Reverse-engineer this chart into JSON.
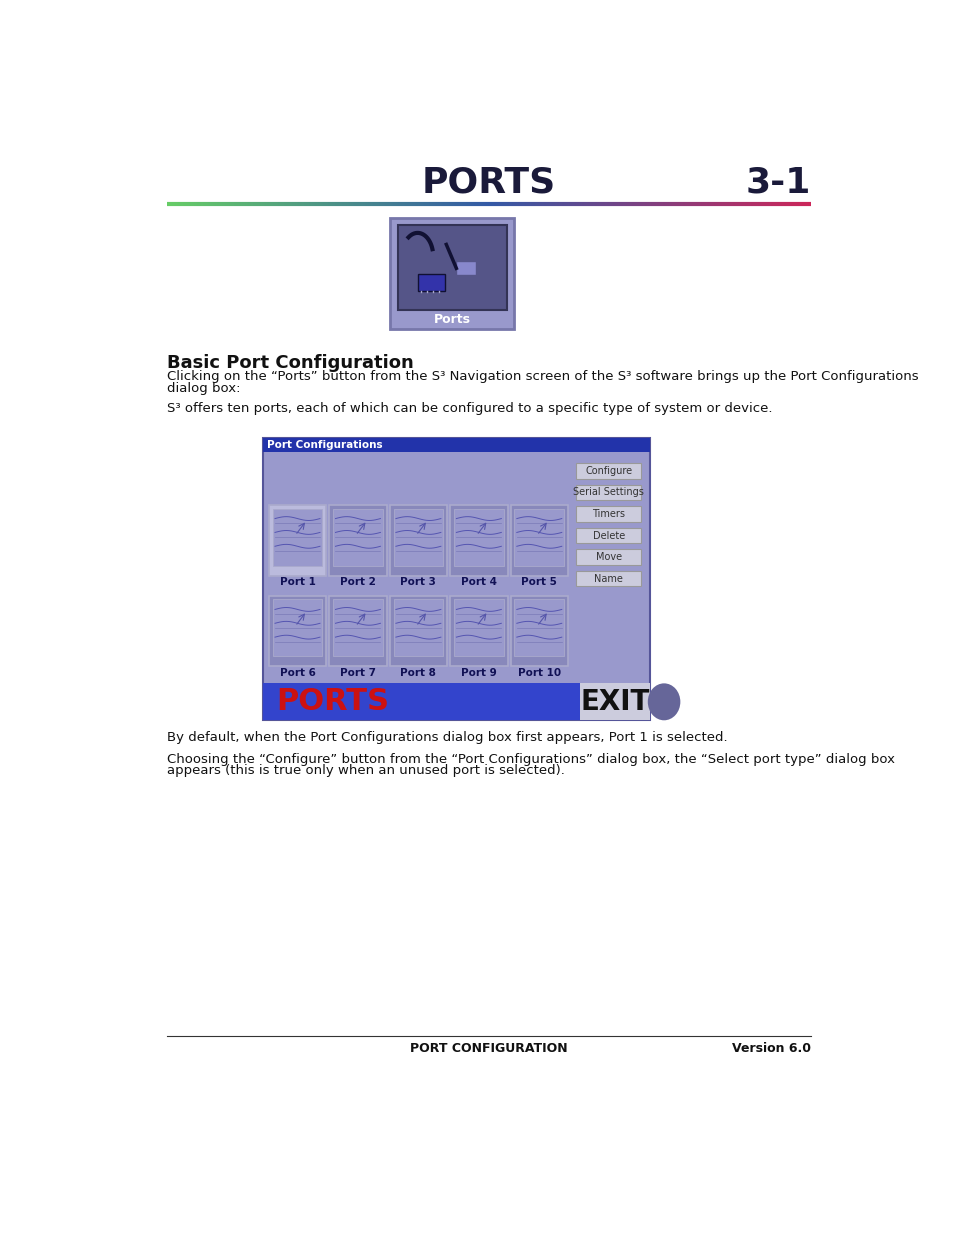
{
  "page_title": "PORTS",
  "page_number": "3-1",
  "section_title": "Basic Port Configuration",
  "body_text_1a": "Clicking on the “Ports” button from the S³ Navigation screen of the S³ software brings up the Port Configurations",
  "body_text_1b": "dialog box:",
  "body_text_2": "S³ offers ten ports, each of which can be configured to a specific type of system or device.",
  "body_text_3": "By default, when the Port Configurations dialog box first appears, Port 1 is selected.",
  "body_text_4a": "Choosing the “Configure” button from the “Port Configurations” dialog box, the “Select port type” dialog box",
  "body_text_4b": "appears (this is true only when an unused port is selected).",
  "footer_center": "PORT CONFIGURATION",
  "footer_right": "Version 6.0",
  "bg_color": "#ffffff",
  "title_color": "#1a1a3a",
  "body_color": "#111111",
  "dialog_bg": "#9999cc",
  "dialog_title_bg": "#2233aa",
  "dialog_bottom_bar_bg": "#3344cc",
  "dialog_exit_bg": "#555588",
  "dialog_exit_tab_bg": "#666699",
  "port_card_bg_selected": "#bbbbdd",
  "port_card_bg_normal": "#8888bb",
  "port_card_inner_bg": "#9999cc",
  "port_card_border": "#aaaacc",
  "port_label_color": "#111155",
  "button_bg": "#ccccdd",
  "button_border": "#999999",
  "icon_outer_bg": "#9999cc",
  "icon_inner_bg": "#8888bb",
  "ports_text_color": "#cc1111",
  "exit_text_color": "#ffffff",
  "btn_labels": [
    "Configure",
    "Serial Settings",
    "Timers",
    "Delete",
    "Move",
    "Name"
  ],
  "port_names": [
    "Port 1",
    "Port 2",
    "Port 3",
    "Port 4",
    "Port 5",
    "Port 6",
    "Port 7",
    "Port 8",
    "Port 9",
    "Port 10"
  ]
}
